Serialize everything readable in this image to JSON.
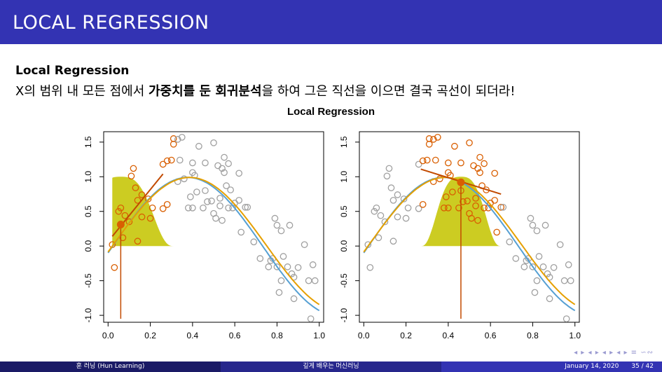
{
  "slide": {
    "title": "LOCAL REGRESSION",
    "heading": "Local Regression",
    "body_prefix": "X의 범위 내 모든 점에서 ",
    "body_bold1": "가중치를 둔 회귀분석",
    "body_suffix": "을 하여 그은 직선을 이으면 결국 곡선이 되더라!",
    "figure_title": "Local Regression"
  },
  "footer": {
    "author": "훈 러닝 (Hun Learning)",
    "center": "깊게 배우는 머신러닝",
    "date": "January 14, 2020",
    "page": "35 / 42"
  },
  "nav_glyphs": "◂ ▸ ◂ ▸ ◂ ▸ ◂ ▸ ≡ ∽∾",
  "colors": {
    "title_bar": "#3333b3",
    "point_gray": "#a0a0a0",
    "point_orange": "#d95f02",
    "true_curve": "#56a0d3",
    "fit_curve": "#e6a000",
    "kernel": "#cccc22"
  },
  "chart_data": [
    {
      "type": "scatter",
      "panel": "left",
      "xlim": [
        0,
        1
      ],
      "ylim": [
        -1.1,
        1.65
      ],
      "x_ticks": [
        "0.0",
        "0.2",
        "0.4",
        "0.6",
        "0.8",
        "1.0"
      ],
      "y_ticks": [
        "-1.0",
        "-0.5",
        "0.0",
        "0.5",
        "1.0",
        "1.5"
      ],
      "target_point": {
        "x": 0.06,
        "y": 0.31
      },
      "kernel_half_width": 0.25,
      "local_line": {
        "x": [
          0.02,
          0.26
        ],
        "y": [
          0.14,
          1.04
        ]
      }
    },
    {
      "type": "scatter",
      "panel": "right",
      "xlim": [
        0,
        1
      ],
      "ylim": [
        -1.1,
        1.65
      ],
      "x_ticks": [
        "0.0",
        "0.2",
        "0.4",
        "0.6",
        "0.8",
        "1.0"
      ],
      "y_ticks": [
        "-1.0",
        "-0.5",
        "0.0",
        "0.5",
        "1.0",
        "1.5"
      ],
      "target_point": {
        "x": 0.46,
        "y": 0.92
      },
      "kernel_half_width": 0.19,
      "local_line": {
        "x": [
          0.27,
          0.65
        ],
        "y": [
          1.11,
          0.75
        ]
      }
    }
  ],
  "points": [
    [
      0.02,
      0.02
    ],
    [
      0.03,
      -0.31
    ],
    [
      0.05,
      0.5
    ],
    [
      0.06,
      0.55
    ],
    [
      0.07,
      0.12
    ],
    [
      0.08,
      0.44
    ],
    [
      0.1,
      0.35
    ],
    [
      0.11,
      1.01
    ],
    [
      0.12,
      1.12
    ],
    [
      0.13,
      0.84
    ],
    [
      0.14,
      0.66
    ],
    [
      0.14,
      0.07
    ],
    [
      0.16,
      0.74
    ],
    [
      0.16,
      0.42
    ],
    [
      0.19,
      0.68
    ],
    [
      0.2,
      0.4
    ],
    [
      0.21,
      0.55
    ],
    [
      0.26,
      0.54
    ],
    [
      0.26,
      1.18
    ],
    [
      0.28,
      1.23
    ],
    [
      0.28,
      0.6
    ],
    [
      0.3,
      1.24
    ],
    [
      0.31,
      1.55
    ],
    [
      0.31,
      1.47
    ],
    [
      0.33,
      1.54
    ],
    [
      0.33,
      0.93
    ],
    [
      0.34,
      1.24
    ],
    [
      0.35,
      1.57
    ],
    [
      0.36,
      0.97
    ],
    [
      0.38,
      0.55
    ],
    [
      0.39,
      0.71
    ],
    [
      0.4,
      1.2
    ],
    [
      0.4,
      1.06
    ],
    [
      0.41,
      1.02
    ],
    [
      0.42,
      0.78
    ],
    [
      0.4,
      0.55
    ],
    [
      0.43,
      1.44
    ],
    [
      0.45,
      0.55
    ],
    [
      0.46,
      0.8
    ],
    [
      0.46,
      1.2
    ],
    [
      0.47,
      0.64
    ],
    [
      0.49,
      0.65
    ],
    [
      0.5,
      1.49
    ],
    [
      0.5,
      0.47
    ],
    [
      0.51,
      0.4
    ],
    [
      0.52,
      1.16
    ],
    [
      0.53,
      0.69
    ],
    [
      0.53,
      0.58
    ],
    [
      0.54,
      0.37
    ],
    [
      0.54,
      1.12
    ],
    [
      0.55,
      1.28
    ],
    [
      0.55,
      1.06
    ],
    [
      0.56,
      0.87
    ],
    [
      0.57,
      0.55
    ],
    [
      0.57,
      1.19
    ],
    [
      0.58,
      0.81
    ],
    [
      0.59,
      0.55
    ],
    [
      0.6,
      0.62
    ],
    [
      0.62,
      0.66
    ],
    [
      0.62,
      1.05
    ],
    [
      0.63,
      0.2
    ],
    [
      0.65,
      0.56
    ],
    [
      0.66,
      0.56
    ],
    [
      0.69,
      0.06
    ],
    [
      0.72,
      -0.18
    ],
    [
      0.76,
      -0.3
    ],
    [
      0.77,
      -0.21
    ],
    [
      0.78,
      -0.18
    ],
    [
      0.79,
      0.4
    ],
    [
      0.8,
      0.3
    ],
    [
      0.8,
      -0.3
    ],
    [
      0.81,
      -0.67
    ],
    [
      0.82,
      -0.5
    ],
    [
      0.82,
      0.22
    ],
    [
      0.83,
      -0.15
    ],
    [
      0.85,
      -0.3
    ],
    [
      0.86,
      0.3
    ],
    [
      0.87,
      -0.4
    ],
    [
      0.88,
      -0.45
    ],
    [
      0.88,
      -0.76
    ],
    [
      0.9,
      -0.31
    ],
    [
      0.93,
      0.02
    ],
    [
      0.95,
      -0.5
    ],
    [
      0.96,
      -1.05
    ],
    [
      0.97,
      -0.27
    ],
    [
      0.98,
      -0.5
    ]
  ]
}
